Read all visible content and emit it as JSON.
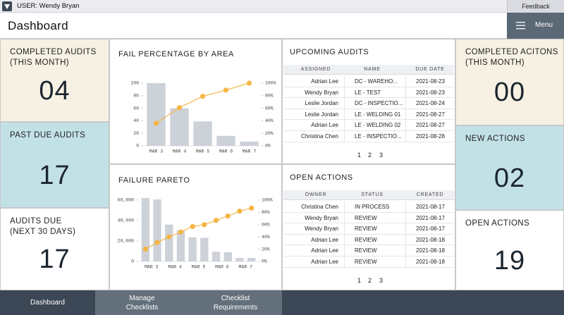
{
  "topbar": {
    "user": "USER: Wendy Bryan",
    "feedback": "Feedback"
  },
  "header": {
    "title": "Dashboard",
    "menu": "Menu"
  },
  "tiles": [
    {
      "label": [
        "COMPLETED AUDITS",
        "(THIS MONTH)"
      ],
      "value": "04"
    },
    {
      "label": [
        "PAST DUE AUDITS"
      ],
      "value": "17"
    },
    {
      "label": [
        "AUDITS DUE",
        "(NEXT 30 DAYS)"
      ],
      "value": "17"
    },
    {
      "label": [
        "COMPLETED ACITONS",
        "(THIS MONTH)"
      ],
      "value": "00"
    },
    {
      "label": [
        "NEW ACTIONS"
      ],
      "value": "02"
    },
    {
      "label": [
        "OPEN ACTIONS"
      ],
      "value": "19"
    }
  ],
  "charts": [
    {
      "type": "pareto",
      "title": "FAIL PERCENTAGE BY AREA",
      "categories": [
        "MAR 3",
        "MAR 4",
        "MAR 5",
        "MAR 6",
        "MAR 7"
      ],
      "series": [
        {
          "color": "#cdd1d8",
          "values": [
            100,
            60,
            39,
            16,
            7
          ]
        },
        {
          "color": "#f5b545",
          "values": [
            36,
            61,
            79,
            89,
            100
          ],
          "axis": "y2"
        }
      ],
      "ylim": [
        0,
        100
      ],
      "yticks": [
        0,
        20,
        40,
        60,
        80,
        100
      ],
      "y2lim": [
        0,
        100
      ],
      "y2ticks": [
        {
          "value": 0,
          "label": "0%"
        },
        {
          "value": 20,
          "label": "20%"
        },
        {
          "value": 40,
          "label": "40%"
        },
        {
          "value": 60,
          "label": "60%"
        },
        {
          "value": 80,
          "label": "80%"
        },
        {
          "value": 100,
          "label": "100%"
        }
      ],
      "grid": false
    },
    {
      "type": "pareto",
      "title": "FAILURE PARETO",
      "categories": [
        "MAR 3",
        null,
        "MAR 4",
        null,
        "MAR 5",
        null,
        "MAR 6",
        null,
        "MAR 7",
        null
      ],
      "series": [
        {
          "color": "#cdd1d8",
          "values": [
            62000,
            60500,
            36000,
            30500,
            23500,
            23000,
            9500,
            9000,
            3500,
            3500
          ]
        },
        {
          "color": "#f5b545",
          "values": [
            20,
            31,
            40,
            48,
            57,
            60,
            67,
            74,
            82,
            87
          ],
          "axis": "y2"
        }
      ],
      "ylim": [
        0,
        64000
      ],
      "yticks": [
        0,
        {
          "value": 20000,
          "label": "20,000"
        },
        {
          "value": 40000,
          "label": "40,000"
        },
        {
          "value": 60000,
          "label": "60,000"
        }
      ],
      "y2lim": [
        0,
        100
      ],
      "y2ticks": [
        {
          "value": 0,
          "label": "0%"
        },
        {
          "value": 20,
          "label": "20%"
        },
        {
          "value": 40,
          "label": "40%"
        },
        {
          "value": 60,
          "label": "60%"
        },
        {
          "value": 80,
          "label": "80%"
        },
        {
          "value": 100,
          "label": "100%"
        }
      ],
      "grid": false
    }
  ],
  "tables": [
    {
      "title": "UPCOMING AUDITS",
      "columns": [
        "ASSIGNED",
        "NAME",
        "DUE DATE"
      ],
      "rows": [
        [
          "Adrian Lee",
          "DC - WAREHO...",
          "2021-08-23"
        ],
        [
          "Wendy Bryan",
          "LE - TEST",
          "2021-08-23"
        ],
        [
          "Leslie Jordan",
          "DC - INSPECTIO...",
          "2021-08-24"
        ],
        [
          "Leslie Jordan",
          "LE - WELDING 01",
          "2021-08-27"
        ],
        [
          "Adrian Lee",
          "LE - WELDING 02",
          "2021-08-27"
        ],
        [
          "Christina Chen",
          "LE - INSPECTIO...",
          "2021-08-28"
        ]
      ],
      "pages": [
        1,
        2,
        3
      ]
    },
    {
      "title": "OPEN ACTIONS",
      "columns": [
        "OWNER",
        "STATUS",
        "CREATED"
      ],
      "rows": [
        [
          "Christina Chen",
          "IN PROCESS",
          "2021-08-17"
        ],
        [
          "Wendy Bryan",
          "REVIEW",
          "2021-08-17"
        ],
        [
          "Wendy Bryan",
          "REVIEW",
          "2021-08-17"
        ],
        [
          "Adrian Lee",
          "REVIEW",
          "2021-08-18"
        ],
        [
          "Adrian Lee",
          "REVIEW",
          "2021-08-18"
        ],
        [
          "Adrian Lee",
          "REVIEW",
          "2021-08-18"
        ]
      ],
      "pages": [
        1,
        2,
        3
      ]
    }
  ],
  "nav": [
    "Dashboard",
    "Manage Checklists",
    "Checklist Requirements"
  ]
}
